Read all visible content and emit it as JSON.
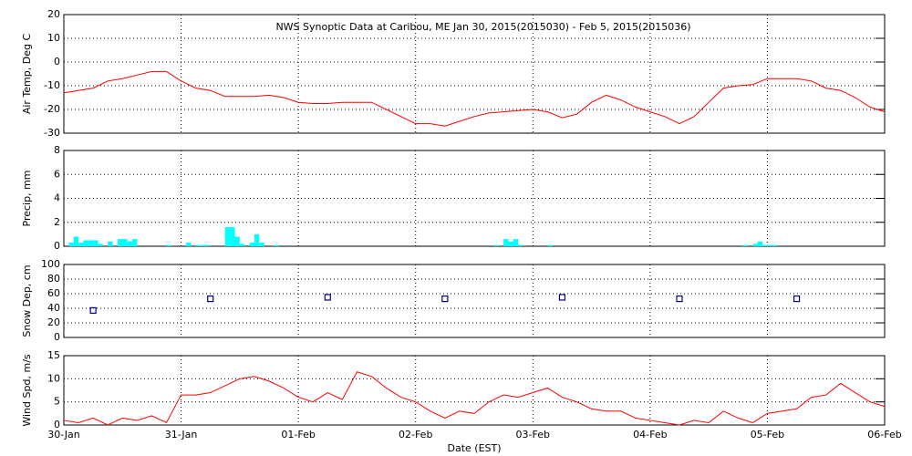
{
  "chart_data": [
    {
      "type": "line",
      "title": "NWS Synoptic Data at Caribou, ME   Jan 30, 2015(2015030) - Feb  5, 2015(2015036)",
      "ylabel": "Air Temp, Deg C",
      "x": [
        0,
        3,
        6,
        9,
        12,
        15,
        18,
        21,
        24,
        27,
        30,
        33,
        36,
        39,
        42,
        45,
        48,
        51,
        54,
        57,
        60,
        63,
        66,
        69,
        72,
        75,
        78,
        81,
        84,
        87,
        90,
        93,
        96,
        99,
        102,
        105,
        108,
        111,
        114,
        117,
        120,
        123,
        126,
        129,
        132,
        135,
        138,
        141,
        144,
        147,
        150,
        153,
        156,
        159,
        162,
        165,
        168
      ],
      "values": [
        -13,
        -12,
        -11,
        -8,
        -7,
        -5.5,
        -4,
        -4,
        -8,
        -11,
        -12,
        -14.5,
        -14.5,
        -14.5,
        -14,
        -15,
        -17,
        -17.5,
        -17.5,
        -17,
        -17,
        -17,
        -20,
        -23,
        -26,
        -26,
        -27,
        -25,
        -23,
        -21.5,
        -21,
        -20.5,
        -20,
        -21,
        -23.5,
        -22,
        -17,
        -14,
        -16,
        -19,
        -21,
        -23,
        -26,
        -23,
        -17,
        -11,
        -10,
        -9.5,
        -7,
        -7,
        -7,
        -8,
        -11,
        -12,
        -15,
        -19,
        -21
      ],
      "color": "#ff0000",
      "xlim": [
        0,
        168
      ],
      "xticks": [
        0,
        24,
        48,
        72,
        96,
        120,
        144,
        168
      ],
      "ylim": [
        -30,
        20
      ],
      "yticks": [
        -30,
        -20,
        -10,
        0,
        10,
        20
      ],
      "grid": true
    },
    {
      "type": "bar",
      "ylabel": "Precip, mm",
      "x": [
        1,
        2,
        3,
        4,
        5,
        6,
        7,
        9,
        11,
        12,
        13,
        14,
        21,
        25,
        27,
        28,
        29,
        33,
        34,
        35,
        36,
        38,
        39,
        40,
        43,
        88,
        90,
        91,
        92,
        93,
        99,
        139,
        141,
        142,
        143,
        144,
        145
      ],
      "values": [
        0.3,
        0.8,
        0.3,
        0.5,
        0.5,
        0.5,
        0.2,
        0.4,
        0.6,
        0.6,
        0.4,
        0.6,
        0.1,
        0.3,
        0.1,
        0.1,
        0.1,
        1.6,
        1.6,
        0.8,
        0.2,
        0.3,
        1.0,
        0.3,
        0.1,
        0.1,
        0.6,
        0.4,
        0.6,
        0.1,
        0.1,
        0.1,
        0.2,
        0.4,
        0.1,
        0.1,
        0.1
      ],
      "color": "#00ffff",
      "xlim": [
        0,
        168
      ],
      "xticks": [
        0,
        24,
        48,
        72,
        96,
        120,
        144,
        168
      ],
      "ylim": [
        0,
        8
      ],
      "yticks": [
        0,
        2,
        4,
        6,
        8
      ],
      "grid": true
    },
    {
      "type": "scatter",
      "ylabel": "Snow Dep, cm",
      "x": [
        6,
        30,
        54,
        78,
        102,
        126,
        150
      ],
      "values": [
        37,
        53,
        55,
        53,
        55,
        53,
        53
      ],
      "color": "#000080",
      "xlim": [
        0,
        168
      ],
      "xticks": [
        0,
        24,
        48,
        72,
        96,
        120,
        144,
        168
      ],
      "ylim": [
        0,
        100
      ],
      "yticks": [
        0,
        20,
        40,
        60,
        80,
        100
      ],
      "grid": true
    },
    {
      "type": "line",
      "ylabel": "Wind Spd, m/s",
      "xlabel": "Date (EST)",
      "x": [
        0,
        3,
        6,
        9,
        12,
        15,
        18,
        21,
        24,
        27,
        30,
        33,
        36,
        39,
        42,
        45,
        48,
        51,
        54,
        57,
        60,
        63,
        66,
        69,
        72,
        75,
        78,
        81,
        84,
        87,
        90,
        93,
        96,
        99,
        102,
        105,
        108,
        111,
        114,
        117,
        120,
        123,
        126,
        129,
        132,
        135,
        138,
        141,
        144,
        147,
        150,
        153,
        156,
        159,
        162,
        165,
        168
      ],
      "values": [
        1,
        0.5,
        1.5,
        0,
        1.5,
        1,
        2,
        0.5,
        6.5,
        6.5,
        7,
        8.5,
        10,
        10.5,
        9.5,
        8,
        6,
        5,
        7,
        5.5,
        11.5,
        10.5,
        8,
        6,
        5,
        3,
        1.5,
        3,
        2.5,
        5,
        6.5,
        6,
        7,
        8,
        6,
        5,
        3.5,
        3,
        3,
        1.5,
        1,
        0.5,
        0,
        1,
        0.5,
        3,
        1.5,
        0.5,
        2.5,
        3,
        3.5,
        6,
        6.5,
        9,
        7,
        5,
        4
      ],
      "color": "#ff0000",
      "xlim": [
        0,
        168
      ],
      "xticks": [
        {
          "value": 0,
          "label": "30-Jan"
        },
        {
          "value": 24,
          "label": "31-Jan"
        },
        {
          "value": 48,
          "label": "01-Feb"
        },
        {
          "value": 72,
          "label": "02-Feb"
        },
        {
          "value": 96,
          "label": "03-Feb"
        },
        {
          "value": 120,
          "label": "04-Feb"
        },
        {
          "value": 144,
          "label": "05-Feb"
        },
        {
          "value": 168,
          "label": "06-Feb"
        }
      ],
      "ylim": [
        0,
        15
      ],
      "yticks": [
        0,
        5,
        10,
        15
      ],
      "grid": true
    }
  ]
}
